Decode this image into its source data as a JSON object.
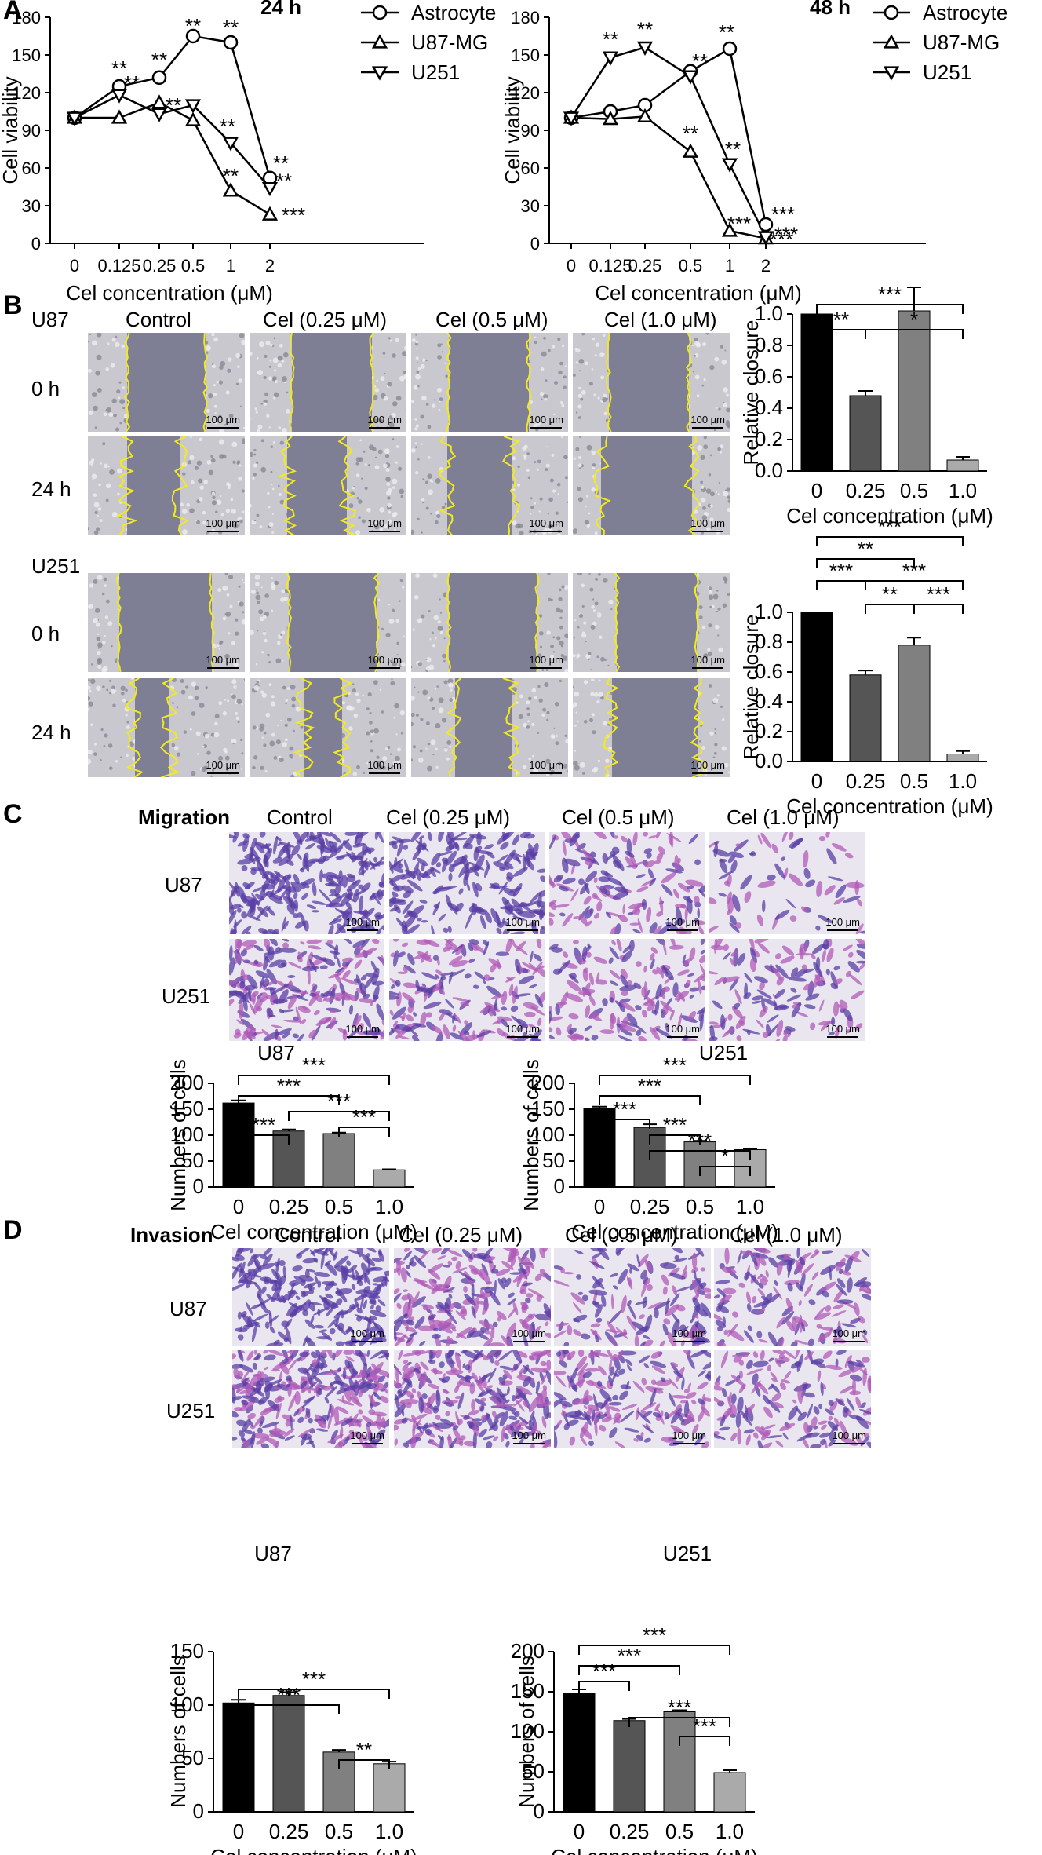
{
  "panels": {
    "A": "A",
    "B": "B",
    "C": "C",
    "D": "D"
  },
  "colors": {
    "bar0": "#000000",
    "bar1": "#555555",
    "bar2": "#808080",
    "bar3": "#aaaaaa",
    "scratch_gray": "#7e7f95",
    "wound_line": "#f2ea1f",
    "stain_bg": "#e9e6ef",
    "stain_purple": "#5a3ea5"
  },
  "panelB": {
    "row_labels": [
      "U87",
      "0 h",
      "24 h",
      "U251",
      "0 h",
      "24 h"
    ],
    "col_labels": [
      "Control",
      "Cel (0.25 μM)",
      "Cel (0.5 μM)",
      "Cel (1.0 μM)"
    ],
    "scalebar": "100 μm"
  },
  "panelC": {
    "title": "Migration",
    "col_labels": [
      "Control",
      "Cel (0.25 μM)",
      "Cel (0.5 μM)",
      "Cel (1.0 μM)"
    ],
    "row_labels": [
      "U87",
      "U251"
    ],
    "scalebar": "100 μm"
  },
  "panelD": {
    "title": "Invasion",
    "col_labels": [
      "Control",
      "Cel (0.25 μM)",
      "Cel (0.5 μM)",
      "Cel (1.0 μM)"
    ],
    "row_labels": [
      "U87",
      "U251"
    ],
    "scalebar": "100 μm"
  },
  "chart_data": [
    {
      "id": "A1",
      "type": "line",
      "title": "24 h",
      "xlabel": "Cel concentration (μM)",
      "ylabel": "Cell viability",
      "categories": [
        "0",
        "0.125",
        "0.25",
        "0.5",
        "1",
        "2"
      ],
      "ylim": [
        0,
        180
      ],
      "yticks": [
        0,
        30,
        60,
        90,
        120,
        150,
        180
      ],
      "legend_position": "top-right",
      "series": [
        {
          "name": "Astrocyte",
          "marker": "circle",
          "values": [
            100,
            125,
            132,
            165,
            160,
            52
          ],
          "sig": [
            "",
            "**",
            "**",
            "**",
            "**",
            "**"
          ]
        },
        {
          "name": "U87-MG",
          "marker": "triangle-up",
          "values": [
            100,
            100,
            112,
            98,
            42,
            23
          ],
          "sig": [
            "",
            "",
            "",
            "",
            "**",
            "***"
          ]
        },
        {
          "name": "U251",
          "marker": "triangle-down",
          "values": [
            100,
            118,
            103,
            110,
            80,
            44
          ],
          "sig": [
            "",
            "**",
            "**",
            "",
            "**",
            "**"
          ]
        }
      ]
    },
    {
      "id": "A2",
      "type": "line",
      "title": "48 h",
      "xlabel": "Cel concentration (μM)",
      "ylabel": "Cell viability",
      "categories": [
        "0",
        "0.125",
        "0.25",
        "0.5",
        "1",
        "2"
      ],
      "ylim": [
        0,
        180
      ],
      "yticks": [
        0,
        30,
        60,
        90,
        120,
        150,
        180
      ],
      "legend_position": "top-right",
      "series": [
        {
          "name": "Astrocyte",
          "marker": "circle",
          "values": [
            100,
            105,
            110,
            137,
            155,
            15
          ],
          "sig": [
            "",
            "",
            "",
            "",
            "**",
            "***"
          ]
        },
        {
          "name": "U87-MG",
          "marker": "triangle-up",
          "values": [
            100,
            99,
            101,
            73,
            10,
            4
          ],
          "sig": [
            "",
            "",
            "",
            "**",
            "***",
            "***"
          ]
        },
        {
          "name": "U251",
          "marker": "triangle-down",
          "values": [
            100,
            148,
            156,
            133,
            63,
            5
          ],
          "sig": [
            "",
            "**",
            "**",
            "**",
            "**",
            "***"
          ]
        }
      ]
    },
    {
      "id": "B1",
      "type": "bar",
      "xlabel": "Cel concentration (μM)",
      "ylabel": "Relative closure",
      "categories": [
        "0",
        "0.25",
        "0.5",
        "1.0"
      ],
      "values": [
        1.0,
        0.48,
        1.02,
        0.07
      ],
      "errors": [
        0,
        0.03,
        0.15,
        0.02
      ],
      "ylim": [
        0,
        1.0
      ],
      "yticks": [
        0.0,
        0.2,
        0.4,
        0.6,
        0.8,
        1.0
      ],
      "ytick_labels": [
        "0.0",
        "0.2",
        "0.4",
        "0.6",
        "0.8",
        "1.0"
      ],
      "comparisons": [
        {
          "a": 0,
          "b": 1,
          "label": "**"
        },
        {
          "a": 1,
          "b": 3,
          "label": "*"
        },
        {
          "a": 0,
          "b": 3,
          "label": "***"
        }
      ]
    },
    {
      "id": "B2",
      "type": "bar",
      "xlabel": "Cel concentration (μM)",
      "ylabel": "Relative closure",
      "categories": [
        "0",
        "0.25",
        "0.5",
        "1.0"
      ],
      "values": [
        1.0,
        0.58,
        0.78,
        0.05
      ],
      "errors": [
        0,
        0.03,
        0.05,
        0.02
      ],
      "ylim": [
        0,
        1.0
      ],
      "yticks": [
        0.0,
        0.2,
        0.4,
        0.6,
        0.8,
        1.0
      ],
      "ytick_labels": [
        "0.0",
        "0.2",
        "0.4",
        "0.6",
        "0.8",
        "1.0"
      ],
      "comparisons": [
        {
          "a": 1,
          "b": 2,
          "label": "**"
        },
        {
          "a": 2,
          "b": 3,
          "label": "***"
        },
        {
          "a": 0,
          "b": 1,
          "label": "***"
        },
        {
          "a": 1,
          "b": 3,
          "label": "***"
        },
        {
          "a": 0,
          "b": 2,
          "label": "**"
        },
        {
          "a": 0,
          "b": 3,
          "label": "***"
        }
      ]
    },
    {
      "id": "C1",
      "type": "bar",
      "title": "U87",
      "xlabel": "Cel concentration (μM)",
      "ylabel": "Numbers of cells",
      "categories": [
        "0",
        "0.25",
        "0.5",
        "1.0"
      ],
      "values": [
        162,
        108,
        103,
        33
      ],
      "errors": [
        5,
        3,
        2,
        1
      ],
      "ylim": [
        0,
        200
      ],
      "yticks": [
        0,
        50,
        100,
        150,
        200
      ],
      "ytick_labels": [
        "0",
        "50",
        "100",
        "150",
        "200"
      ],
      "comparisons": [
        {
          "a": 2,
          "b": 3,
          "label": "***"
        },
        {
          "a": 1,
          "b": 3,
          "label": "***"
        },
        {
          "a": 0,
          "b": 1,
          "label": "***"
        },
        {
          "a": 0,
          "b": 2,
          "label": "***"
        },
        {
          "a": 0,
          "b": 3,
          "label": "***"
        }
      ]
    },
    {
      "id": "C2",
      "type": "bar",
      "title": "U251",
      "xlabel": "Cel concentration (μM)",
      "ylabel": "Numbers of cells",
      "categories": [
        "0",
        "0.25",
        "0.5",
        "1.0"
      ],
      "values": [
        152,
        115,
        87,
        72
      ],
      "errors": [
        3,
        6,
        2,
        2
      ],
      "ylim": [
        0,
        200
      ],
      "yticks": [
        0,
        50,
        100,
        150,
        200
      ],
      "ytick_labels": [
        "0",
        "50",
        "100",
        "150",
        "200"
      ],
      "comparisons": [
        {
          "a": 2,
          "b": 3,
          "label": "*"
        },
        {
          "a": 1,
          "b": 2,
          "label": "***"
        },
        {
          "a": 1,
          "b": 3,
          "label": "***"
        },
        {
          "a": 0,
          "b": 1,
          "label": "***"
        },
        {
          "a": 0,
          "b": 2,
          "label": "***"
        },
        {
          "a": 0,
          "b": 3,
          "label": "***"
        }
      ]
    },
    {
      "id": "D1",
      "type": "bar",
      "title": "U87",
      "xlabel": "Cel concentration (μM)",
      "ylabel": "Numbers of cells",
      "categories": [
        "0",
        "0.25",
        "0.5",
        "1.0"
      ],
      "values": [
        102,
        109,
        56,
        45
      ],
      "errors": [
        3,
        3,
        2,
        2
      ],
      "ylim": [
        0,
        150
      ],
      "yticks": [
        0,
        50,
        100,
        150
      ],
      "ytick_labels": [
        "0",
        "50",
        "100",
        "150"
      ],
      "comparisons": [
        {
          "a": 2,
          "b": 3,
          "label": "**"
        },
        {
          "a": 0,
          "b": 2,
          "label": "***"
        },
        {
          "a": 0,
          "b": 3,
          "label": "***"
        }
      ]
    },
    {
      "id": "D2",
      "type": "bar",
      "title": "U251",
      "xlabel": "Cel concentration (μM)",
      "ylabel": "Numbers of cells",
      "categories": [
        "0",
        "0.25",
        "0.5",
        "1.0"
      ],
      "values": [
        148,
        114,
        125,
        49
      ],
      "errors": [
        5,
        2,
        2,
        3
      ],
      "ylim": [
        0,
        200
      ],
      "yticks": [
        0,
        50,
        100,
        150,
        200
      ],
      "ytick_labels": [
        "0",
        "50",
        "100",
        "150",
        "200"
      ],
      "comparisons": [
        {
          "a": 2,
          "b": 3,
          "label": "***"
        },
        {
          "a": 1,
          "b": 3,
          "label": "***"
        },
        {
          "a": 0,
          "b": 1,
          "label": "***"
        },
        {
          "a": 0,
          "b": 2,
          "label": "***"
        },
        {
          "a": 0,
          "b": 3,
          "label": "***"
        }
      ]
    }
  ]
}
